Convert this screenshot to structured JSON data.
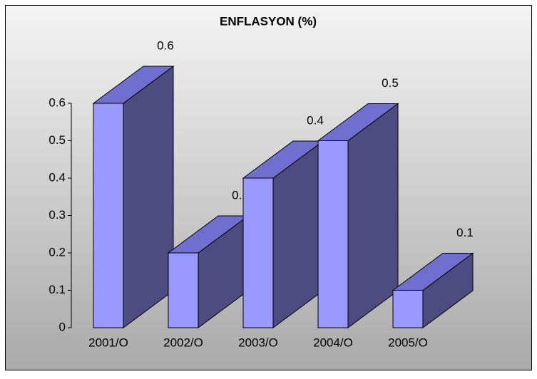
{
  "chart_data": {
    "type": "bar3d",
    "title": "ENFLASYON (%)",
    "categories": [
      "2001/O",
      "2002/O",
      "2003/O",
      "2004/O",
      "2005/O"
    ],
    "values": [
      0.6,
      0.2,
      0.4,
      0.5,
      0.1
    ],
    "color": "#9999ff",
    "ylim": [
      0,
      0.6
    ],
    "yticks": [
      0,
      0.1,
      0.2,
      0.3,
      0.4,
      0.5,
      0.6
    ],
    "grid": false
  }
}
